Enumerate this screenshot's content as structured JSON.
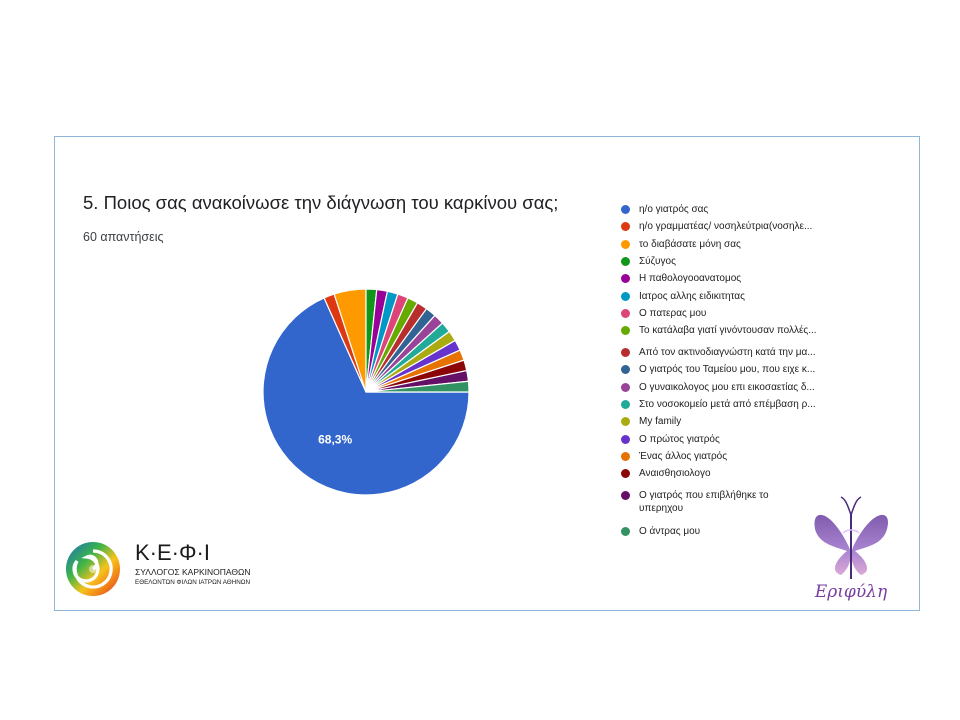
{
  "title": "5. Ποιος σας ανακοίνωσε την διάγνωση του καρκίνου σας;",
  "subtitle": "60 απαντήσεις",
  "chart_data": {
    "type": "pie",
    "total_responses": 60,
    "slice_label": "68,3%",
    "categories": [
      "η/ο γιατρός σας",
      "η/ο γραμματέας/ νοσηλεύτρια(νοσηλε...",
      "το διαβάσατε μόνη σας",
      "Σύζυγος",
      "Η παθολογοοανατομος",
      "Ιατρος αλλης ειδικιτητας",
      "Ο πατερας μου",
      "Το κατάλαβα γιατί γινόντουσαν πολλές...",
      "Από τον ακτινοδιαγνώστη κατά την μα...",
      "Ο γιατρός του Ταμείου μου, που ειχε κ...",
      "Ο γυναικολογος μου επι εικοσαετίας δ...",
      "Στο νοσοκομείο μετά από επέμβαση ρ...",
      "My family",
      "Ο πρώτος γιατρός",
      "Ένας άλλος γιατρός",
      "Αναισθησιολογο",
      "Ο γιατρός που επιβλήθηκε το υπερηχου",
      "Ο άντρας μου"
    ],
    "values": [
      41,
      1,
      3,
      1,
      1,
      1,
      1,
      1,
      1,
      1,
      1,
      1,
      1,
      1,
      1,
      1,
      1,
      1
    ],
    "colors": [
      "#3366cc",
      "#dc3912",
      "#ff9900",
      "#109618",
      "#990099",
      "#0099c6",
      "#dd4477",
      "#66aa00",
      "#b82e2e",
      "#316395",
      "#994499",
      "#22aa99",
      "#aaaa11",
      "#6633cc",
      "#e67300",
      "#8b0707",
      "#651067",
      "#329262"
    ]
  },
  "logos": {
    "kefi": {
      "name": "Κ·Ε·Φ·Ι",
      "line1": "ΣΥΛΛΟΓΟΣ ΚΑΡΚΙΝΟΠΑΘΩΝ",
      "line2": "ΕΘΕΛΟΝΤΩΝ ΦΙΛΩΝ ΙΑΤΡΩΝ ΑΘΗΝΩΝ"
    },
    "erifyli": {
      "name": "Εριφύλη"
    }
  }
}
